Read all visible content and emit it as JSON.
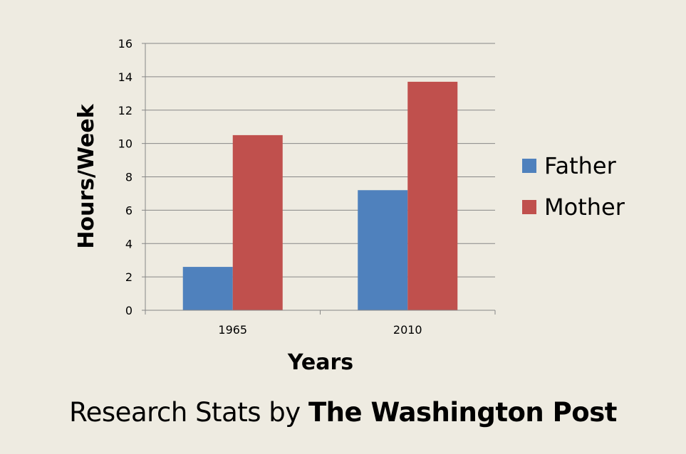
{
  "chart_data": {
    "type": "bar",
    "categories": [
      "1965",
      "2010"
    ],
    "series": [
      {
        "name": "Father",
        "values": [
          2.6,
          7.2
        ],
        "color": "#4f81bd"
      },
      {
        "name": "Mother",
        "values": [
          10.5,
          13.7
        ],
        "color": "#c0504d"
      }
    ],
    "xlabel": "Years",
    "ylabel": "Hours/Week",
    "ylim": [
      0,
      16
    ],
    "yticks": [
      0,
      2,
      4,
      6,
      8,
      10,
      12,
      14,
      16
    ],
    "grid": true,
    "legend_position": "right"
  },
  "caption": {
    "prefix": "Research Stats by",
    "source": "The Washington Post"
  }
}
